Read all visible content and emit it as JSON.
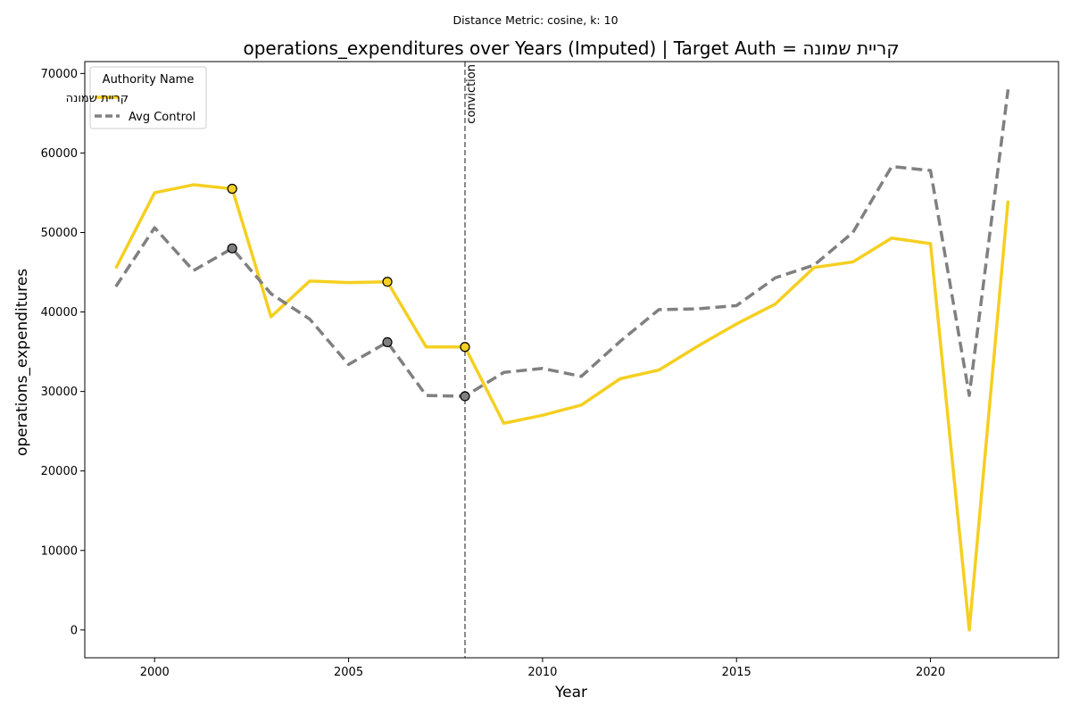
{
  "chart_data": {
    "type": "line",
    "suptitle": "Distance Metric: cosine, k: 10",
    "title": "operations_expenditures over Years (Imputed) | Target Auth = קריית שמונה",
    "xlabel": "Year",
    "ylabel": "operations_expenditures",
    "xlim": [
      1998.2,
      2023.3
    ],
    "ylim": [
      -3500,
      71500
    ],
    "xticks": [
      2000,
      2005,
      2010,
      2015,
      2020
    ],
    "yticks": [
      0,
      10000,
      20000,
      30000,
      40000,
      50000,
      60000,
      70000
    ],
    "grid": false,
    "legend": {
      "title": "Authority Name",
      "position": "top-left"
    },
    "x": [
      1999,
      2000,
      2001,
      2002,
      2003,
      2004,
      2005,
      2006,
      2007,
      2008,
      2009,
      2010,
      2011,
      2012,
      2013,
      2014,
      2015,
      2016,
      2017,
      2018,
      2019,
      2020,
      2021,
      2022
    ],
    "series": [
      {
        "name": "קריית שמונה",
        "color": "#f5cf21",
        "style": "solid",
        "values": [
          45500,
          55000,
          56000,
          55500,
          39400,
          43900,
          43700,
          43800,
          35600,
          35600,
          26000,
          27000,
          28300,
          31600,
          32700,
          35700,
          38500,
          41000,
          45600,
          46300,
          49300,
          48600,
          0,
          54000
        ],
        "markers_at": [
          2002,
          2006,
          2008
        ]
      },
      {
        "name": "Avg Control",
        "color": "#808080",
        "style": "dashed",
        "values": [
          43200,
          50600,
          45200,
          48000,
          42300,
          39100,
          33400,
          36200,
          29500,
          29400,
          32400,
          32900,
          31900,
          36300,
          40300,
          40400,
          40800,
          44300,
          45900,
          50000,
          58300,
          57800,
          29500,
          68000
        ],
        "markers_at": [
          2002,
          2006,
          2008
        ]
      }
    ],
    "annotations": [
      {
        "type": "vline",
        "x": 2008,
        "label": "conviction",
        "color": "#808080",
        "style": "dashed"
      }
    ]
  }
}
